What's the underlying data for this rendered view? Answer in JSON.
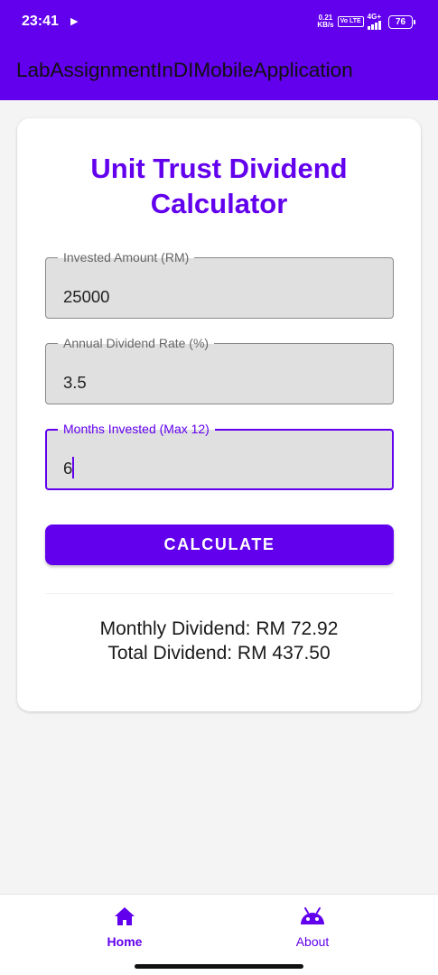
{
  "status_bar": {
    "time": "23:41",
    "net_speed_value": "0.21",
    "net_speed_unit": "KB/s",
    "volte": "Vo LTE",
    "network": "4G+",
    "battery": "76"
  },
  "app_bar": {
    "title": "LabAssignmentInDIMobileApplication"
  },
  "calculator": {
    "title_line1": "Unit Trust Dividend",
    "title_line2": "Calculator",
    "fields": [
      {
        "label": "Invested Amount (RM)",
        "value": "25000"
      },
      {
        "label": "Annual Dividend Rate (%)",
        "value": "3.5"
      },
      {
        "label": "Months Invested (Max 12)",
        "value": "6"
      }
    ],
    "button_label": "CALCULATE",
    "monthly_result": "Monthly Dividend: RM 72.92",
    "total_result": "Total Dividend: RM 437.50"
  },
  "bottom_nav": {
    "items": [
      {
        "label": "Home",
        "icon": "home-icon",
        "selected": true
      },
      {
        "label": "About",
        "icon": "android-icon",
        "selected": false
      }
    ]
  },
  "colors": {
    "primary": "#6200ee",
    "field_background": "#e0e0e0",
    "screen_background": "#f4f4f4"
  }
}
